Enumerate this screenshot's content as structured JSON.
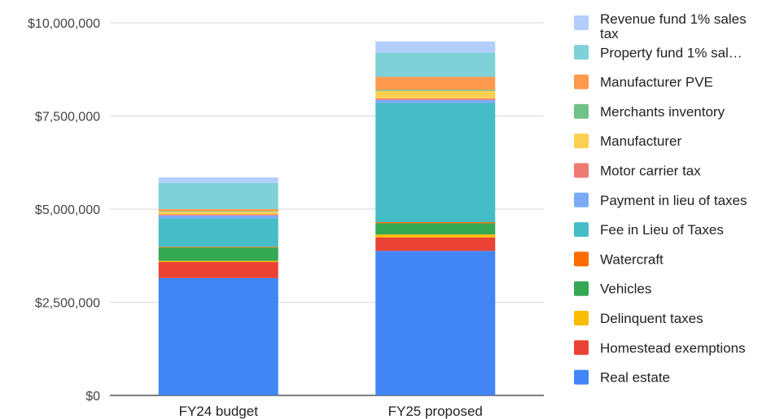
{
  "chart_data": {
    "type": "bar",
    "stacked": true,
    "categories": [
      "FY24 budget",
      "FY25 proposed"
    ],
    "ylim": [
      0,
      10000000
    ],
    "yticks": [
      {
        "value": 0,
        "label": "$0"
      },
      {
        "value": 2500000,
        "label": "$2,500,000"
      },
      {
        "value": 5000000,
        "label": "$5,000,000"
      },
      {
        "value": 7500000,
        "label": "$7,500,000"
      },
      {
        "value": 10000000,
        "label": "$10,000,000"
      }
    ],
    "grid": true,
    "legend_position": "right",
    "series": [
      {
        "name": "Real estate",
        "color": "#4285f4",
        "values": [
          3150000,
          3880000
        ]
      },
      {
        "name": "Homestead exemptions",
        "color": "#ea4335",
        "values": [
          430000,
          360000
        ]
      },
      {
        "name": "Delinquent taxes",
        "color": "#fbbc04",
        "values": [
          30000,
          80000
        ]
      },
      {
        "name": "Vehicles",
        "color": "#34a853",
        "values": [
          360000,
          300000
        ]
      },
      {
        "name": "Watercraft",
        "color": "#ff6d01",
        "values": [
          20000,
          30000
        ]
      },
      {
        "name": "Fee in Lieu of Taxes",
        "color": "#46bdc6",
        "values": [
          760000,
          3200000
        ]
      },
      {
        "name": "Payment in lieu of taxes",
        "color": "#7baaf7",
        "values": [
          80000,
          80000
        ]
      },
      {
        "name": "Motor carrier tax",
        "color": "#f07b72",
        "values": [
          30000,
          40000
        ]
      },
      {
        "name": "Manufacturer",
        "color": "#fcd04f",
        "values": [
          70000,
          200000
        ]
      },
      {
        "name": "Merchants inventory",
        "color": "#71c287",
        "values": [
          20000,
          30000
        ]
      },
      {
        "name": "Manufacturer PVE",
        "color": "#ff994d",
        "values": [
          50000,
          350000
        ]
      },
      {
        "name": "Property fund 1% sal…",
        "color": "#7ed1d7",
        "values": [
          700000,
          650000
        ]
      },
      {
        "name": "Revenue fund 1% sales tax",
        "color": "#b3cefb",
        "values": [
          150000,
          300000
        ]
      }
    ]
  }
}
